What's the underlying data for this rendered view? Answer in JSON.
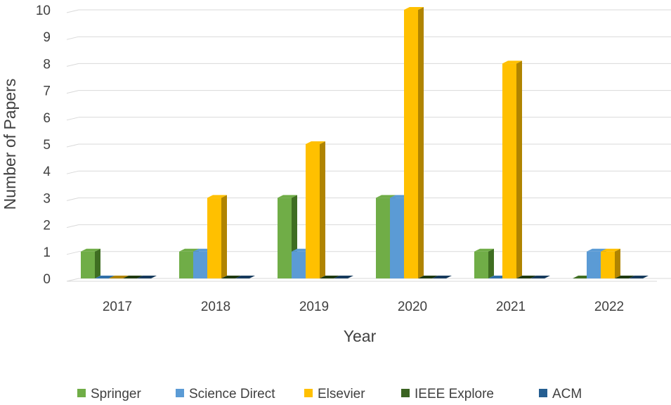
{
  "chart_data": {
    "type": "bar",
    "style": "3d-clustered-column",
    "title": "",
    "xlabel": "Year",
    "ylabel": "Number of Papers",
    "ylim": [
      0,
      10
    ],
    "yticks": [
      "0",
      "1",
      "2",
      "3",
      "4",
      "5",
      "6",
      "7",
      "8",
      "9",
      "10"
    ],
    "grid": true,
    "legend_position": "bottom",
    "categories": [
      "2017",
      "2018",
      "2019",
      "2020",
      "2021",
      "2022"
    ],
    "series": [
      {
        "name": "Springer",
        "color": "#70AD47",
        "side": "#3F6E22",
        "values": [
          1,
          1,
          3,
          3,
          1,
          0
        ]
      },
      {
        "name": "Science Direct",
        "color": "#5B9BD5",
        "side": "#2F6FA8",
        "values": [
          0,
          1,
          1,
          3,
          0,
          1
        ]
      },
      {
        "name": "Elsevier",
        "color": "#FFC000",
        "side": "#B08400",
        "values": [
          0,
          3,
          5,
          10,
          8,
          1
        ]
      },
      {
        "name": "IEEE Explore",
        "color": "#3A6321",
        "side": "#1F3A10",
        "values": [
          0,
          0,
          0,
          0,
          0,
          0
        ]
      },
      {
        "name": "ACM",
        "color": "#255E91",
        "side": "#163A5C",
        "values": [
          0,
          0,
          0,
          0,
          0,
          0
        ]
      }
    ]
  }
}
